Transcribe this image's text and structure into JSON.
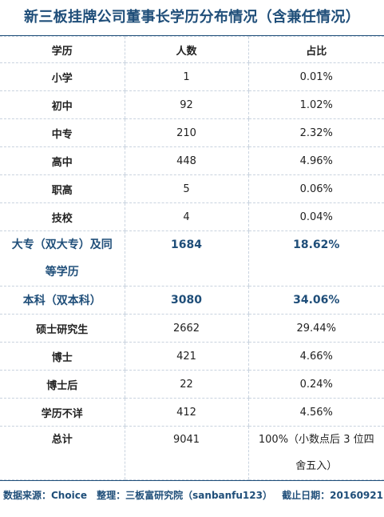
{
  "title": "新三板挂牌公司董事长学历分布情况（含兼任情况）",
  "columns": [
    "学历",
    "人数",
    "占比"
  ],
  "rows": [
    {
      "edu": "小学",
      "count": "1",
      "pct": "0.01%"
    },
    {
      "edu": "初中",
      "count": "92",
      "pct": "1.02%"
    },
    {
      "edu": "中专",
      "count": "210",
      "pct": "2.32%"
    },
    {
      "edu": "高中",
      "count": "448",
      "pct": "4.96%"
    },
    {
      "edu": "职高",
      "count": "5",
      "pct": "0.06%"
    },
    {
      "edu": "技校",
      "count": "4",
      "pct": "0.04%"
    },
    {
      "edu": "大专（双大专）及同等学历",
      "count": "1684",
      "pct": "18.62%"
    },
    {
      "edu": "本科（双本科）",
      "count": "3080",
      "pct": "34.06%"
    },
    {
      "edu": "硕士研究生",
      "count": "2662",
      "pct": "29.44%"
    },
    {
      "edu": "博士",
      "count": "421",
      "pct": "4.66%"
    },
    {
      "edu": "博士后",
      "count": "22",
      "pct": "0.24%"
    },
    {
      "edu": "学历不详",
      "count": "412",
      "pct": "4.56%"
    }
  ],
  "total": {
    "label": "总计",
    "count": "9041",
    "pct": "100%（小数点后 3 位四舍五入）"
  },
  "footer": {
    "source": "数据来源：Choice",
    "compiler": "整理：三板富研究院（sanbanfu123）",
    "deadline": "截止日期：20160921"
  },
  "colors": {
    "accent": "#1f4e79",
    "grid": "#c9d3df"
  }
}
